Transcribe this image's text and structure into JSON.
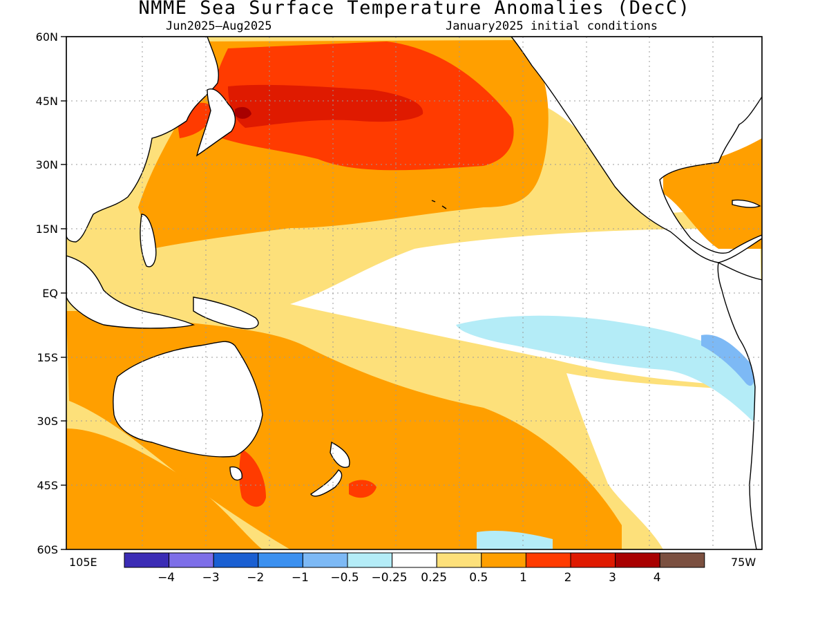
{
  "title": "NMME Sea Surface Temperature Anomalies (DecC)",
  "subtitle_left": "Jun2025–Aug2025",
  "subtitle_right": "January2025 initial conditions",
  "lat_labels": [
    "60N",
    "45N",
    "30N",
    "15N",
    "EQ",
    "15S",
    "30S",
    "45S",
    "60S"
  ],
  "lon_labels": {
    "left": "105E",
    "right": "75W"
  },
  "legend": {
    "colors": [
      "#3b2cb5",
      "#7d6ee8",
      "#1a5fd2",
      "#3b90f0",
      "#7db9f5",
      "#b4ecf7",
      "#ffffff",
      "#fde07a",
      "#ff9f00",
      "#ff3b00",
      "#df1a00",
      "#a80000",
      "#7b5040"
    ],
    "labels": [
      "−4",
      "−3",
      "−2",
      "−1",
      "−0.5",
      "−0.25",
      "0.25",
      "0.5",
      "1",
      "2",
      "3",
      "4"
    ]
  },
  "map_colors": {
    "weak_warm": "#fde07a",
    "moderate_warm": "#ff9f00",
    "strong_warm": "#ff3b00",
    "very_strong_warm": "#df1a00",
    "extreme_warm": "#a80000",
    "weak_cool": "#b4ecf7",
    "moderate_cool": "#7db9f5",
    "coast": "#000000",
    "grid": "#9a9a9a"
  }
}
